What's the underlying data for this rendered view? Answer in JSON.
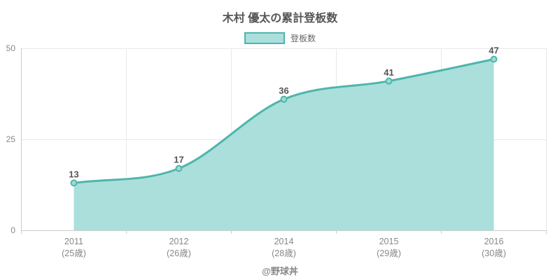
{
  "chart": {
    "title": "木村 優太の累計登板数",
    "legend_label": "登板数",
    "footer": "@野球丼"
  },
  "colors": {
    "line": "#4db6ac",
    "area_fill": "#abdfdb",
    "marker_fill": "#9edad4",
    "legend_swatch_border": "#4db6ac",
    "legend_swatch_fill": "#abdfdb",
    "grid": "#e9e9e9",
    "axis": "#cccccc",
    "tick_label": "#888888",
    "value_label": "#555555",
    "title_text": "#555555",
    "legend_text": "#666666",
    "footer_text": "#888888",
    "background": "#ffffff"
  },
  "chart_data": {
    "type": "area",
    "title": "木村 優太の累計登板数",
    "series": [
      {
        "name": "登板数",
        "values": [
          13,
          17,
          36,
          41,
          47
        ]
      }
    ],
    "categories": [
      {
        "label": "2011",
        "sublabel": "(25歳)"
      },
      {
        "label": "2012",
        "sublabel": "(26歳)"
      },
      {
        "label": "2014",
        "sublabel": "(28歳)"
      },
      {
        "label": "2015",
        "sublabel": "(29歳)"
      },
      {
        "label": "2016",
        "sublabel": "(30歳)"
      }
    ],
    "xlabel": "",
    "ylabel": "",
    "ylim": [
      0,
      50
    ],
    "yticks": [
      0,
      25,
      50
    ],
    "grid": true,
    "legend_position": "top",
    "smooth": true,
    "point_labels": true
  }
}
